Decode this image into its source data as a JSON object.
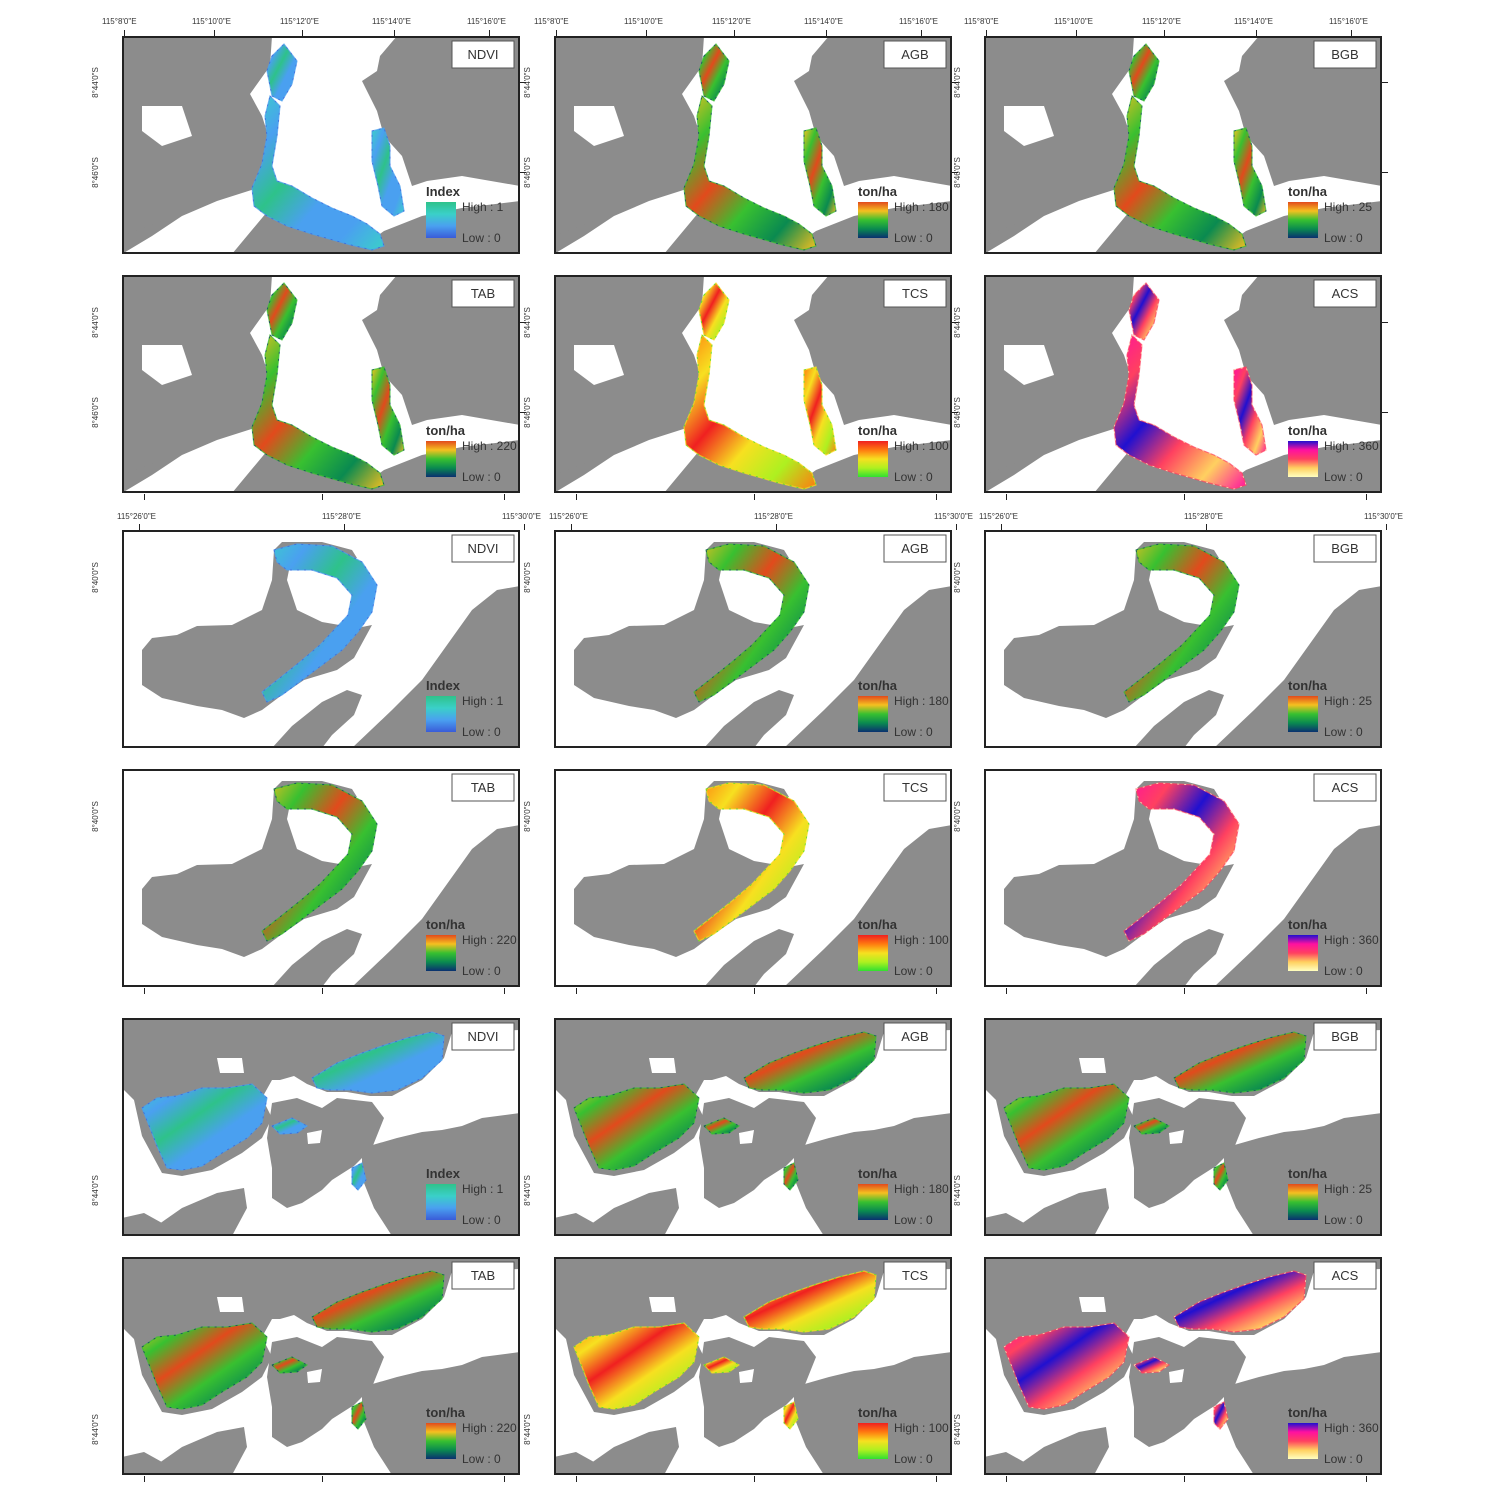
{
  "colors": {
    "land": "#8c8c8c",
    "water": "#ffffff",
    "frame": "#222222",
    "ramps": {
      "ndvi": [
        "#2ec28a",
        "#3ad0c8",
        "#4aa0f0",
        "#3a5cd8"
      ],
      "agb": [
        "#e24a1c",
        "#f5c020",
        "#38c030",
        "#0a8a50",
        "#0a3070"
      ],
      "bgb": [
        "#e24a1c",
        "#f5c020",
        "#38c030",
        "#0a8a50",
        "#0a3070"
      ],
      "tab": [
        "#e24a1c",
        "#f5c020",
        "#38c030",
        "#0a8a50",
        "#0a3070"
      ],
      "tcs": [
        "#f02020",
        "#ff7a10",
        "#f7e020",
        "#aef020",
        "#30e030"
      ],
      "acs": [
        "#2010d0",
        "#ff10a0",
        "#ff4060",
        "#ffd060",
        "#ffffc0"
      ]
    }
  },
  "grid_labels": {
    "top_lon": [
      "115°8'0\"E",
      "115°10'0\"E",
      "115°12'0\"E",
      "115°14'0\"E",
      "115°16'0\"E"
    ],
    "mid_lon": [
      "115°26'0\"E",
      "115°28'0\"E",
      "115°30'0\"E"
    ],
    "group1_lat": [
      "8°44'0\"S",
      "8°46'0\"S"
    ],
    "group2_lat": [
      "8°40'0\"S"
    ],
    "group3_lat": [
      "8°44'0\"S"
    ]
  },
  "panels": {
    "ndvi": {
      "title": "NDVI",
      "unit": "Index",
      "high": "High : 1",
      "low": "Low : 0",
      "ramp": "ndvi"
    },
    "agb": {
      "title": "AGB",
      "unit": "ton/ha",
      "high": "High : 180",
      "low": "Low : 0",
      "ramp": "agb"
    },
    "bgb": {
      "title": "BGB",
      "unit": "ton/ha",
      "high": "High : 25",
      "low": "Low : 0",
      "ramp": "bgb"
    },
    "tab": {
      "title": "TAB",
      "unit": "ton/ha",
      "high": "High : 220",
      "low": "Low : 0",
      "ramp": "tab"
    },
    "tcs": {
      "title": "TCS",
      "unit": "ton/ha",
      "high": "High : 100",
      "low": "Low : 0",
      "ramp": "tcs"
    },
    "acs": {
      "title": "ACS",
      "unit": "ton/ha",
      "high": "High : 360",
      "low": "Low : 0",
      "ramp": "acs"
    }
  },
  "layout_order": {
    "group_1": [
      "ndvi",
      "agb",
      "bgb",
      "tab",
      "tcs",
      "acs"
    ],
    "group_2": [
      "ndvi",
      "agb",
      "bgb",
      "tab",
      "tcs",
      "acs"
    ],
    "group_3": [
      "ndvi",
      "agb",
      "bgb",
      "tab",
      "tcs",
      "acs"
    ]
  }
}
